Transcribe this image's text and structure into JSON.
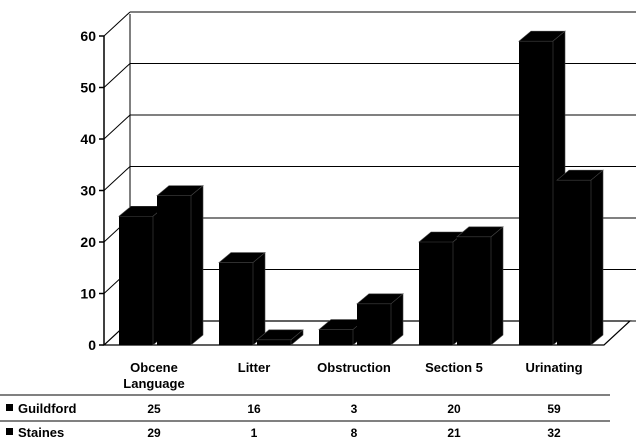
{
  "chart_data": {
    "type": "bar",
    "categories": [
      [
        "Obcene",
        "Language"
      ],
      [
        "Litter"
      ],
      [
        "Obstruction"
      ],
      [
        "Section 5"
      ],
      [
        "Urinating"
      ]
    ],
    "series": [
      {
        "name": "Guildford",
        "values": [
          25,
          16,
          3,
          20,
          59
        ]
      },
      {
        "name": "Staines",
        "values": [
          29,
          1,
          8,
          21,
          32
        ]
      }
    ],
    "table_values": [
      [
        "25",
        "16",
        "3",
        "20",
        "59"
      ],
      [
        "29",
        "1",
        "8",
        "21",
        "32"
      ]
    ],
    "yticks": [
      "0",
      "10",
      "20",
      "30",
      "40",
      "50",
      "60"
    ],
    "ylim": [
      0,
      60
    ],
    "three_d": true,
    "grid": true,
    "legend": "data table below chart"
  },
  "colors": {
    "bar": "#000000",
    "gridline": "#000000",
    "background": "#ffffff"
  }
}
